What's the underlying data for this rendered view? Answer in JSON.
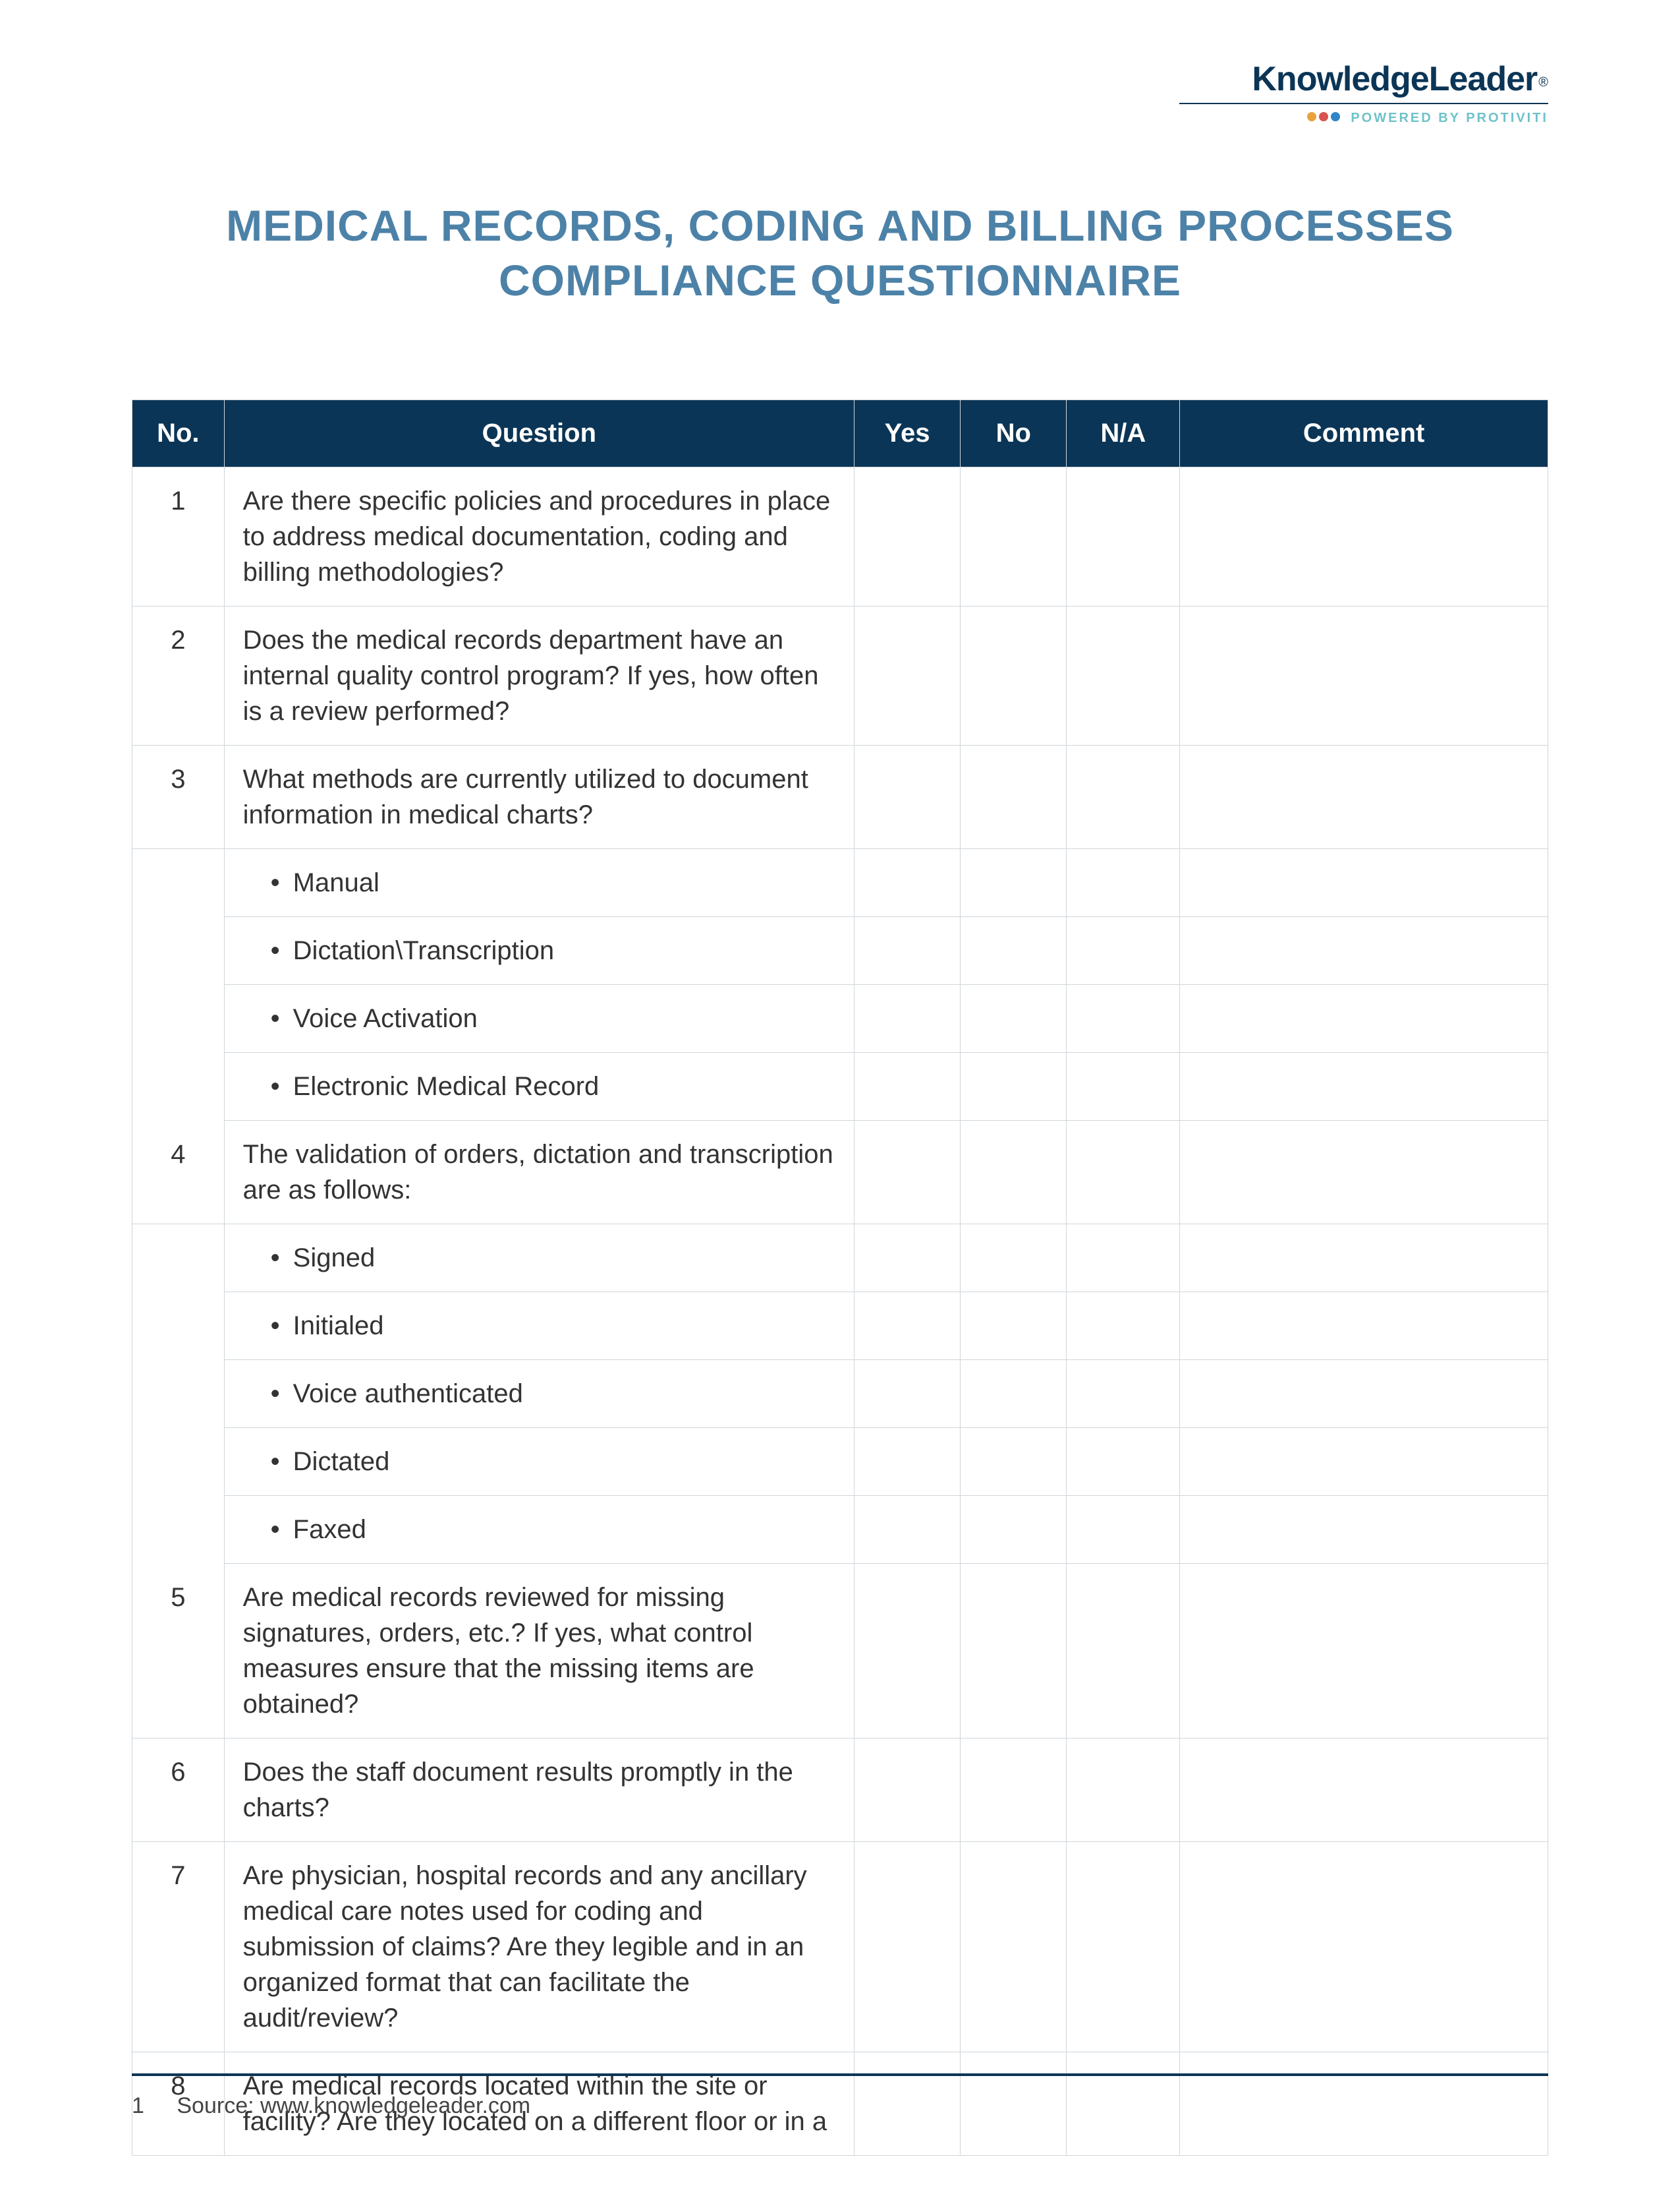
{
  "logo": {
    "name": "KnowledgeLeader",
    "reg": "®",
    "tagline": "POWERED BY PROTIVITI",
    "dot_colors": [
      "#e8a33d",
      "#d9534f",
      "#2f86c6"
    ]
  },
  "title_line1": "MEDICAL RECORDS, CODING AND BILLING PROCESSES",
  "title_line2": "COMPLIANCE QUESTIONNAIRE",
  "columns": {
    "no": "No.",
    "question": "Question",
    "yes": "Yes",
    "no_col": "No",
    "na": "N/A",
    "comment": "Comment"
  },
  "col_widths": {
    "no": "6.5%",
    "question": "44.5%",
    "yes": "7.5%",
    "no_col": "7.5%",
    "na": "8%",
    "comment": "26%"
  },
  "rows": [
    {
      "no": "1",
      "text": "Are there specific policies and procedures in place to address medical documentation, coding and billing methodologies?"
    },
    {
      "no": "2",
      "text": "Does the medical records department have an internal quality control program? If yes, how often is a review performed?"
    },
    {
      "no": "3",
      "text": "What methods are currently utilized to document information in medical charts?"
    },
    {
      "no": "",
      "text": "Manual",
      "sub": true
    },
    {
      "no": "",
      "text": "Dictation\\Transcription",
      "sub": true
    },
    {
      "no": "",
      "text": "Voice Activation",
      "sub": true
    },
    {
      "no": "",
      "text": "Electronic Medical Record",
      "sub": true
    },
    {
      "no": "4",
      "text": "The validation of orders, dictation and transcription are as follows:"
    },
    {
      "no": "",
      "text": "Signed",
      "sub": true
    },
    {
      "no": "",
      "text": "Initialed",
      "sub": true
    },
    {
      "no": "",
      "text": "Voice authenticated",
      "sub": true
    },
    {
      "no": "",
      "text": "Dictated",
      "sub": true
    },
    {
      "no": "",
      "text": "Faxed",
      "sub": true
    },
    {
      "no": "5",
      "text": "Are medical records reviewed for missing signatures, orders, etc.? If yes, what control measures ensure that the missing items are obtained?"
    },
    {
      "no": "6",
      "text": "Does the staff document results promptly in the charts?"
    },
    {
      "no": "7",
      "text": "Are physician, hospital records and any ancillary medical care notes used for coding and submission of claims? Are they legible and in an organized format that can facilitate the audit/review?"
    },
    {
      "no": "8",
      "text": "Are medical records located within the site or facility? Are they located on a different floor or in a"
    }
  ],
  "footer": {
    "page": "1",
    "source_label": "Source:",
    "source_value": "www.knowledgeleader.com"
  },
  "colors": {
    "header_bg": "#0b3556",
    "title_color": "#4d82a8",
    "border": "#cfd6db"
  }
}
